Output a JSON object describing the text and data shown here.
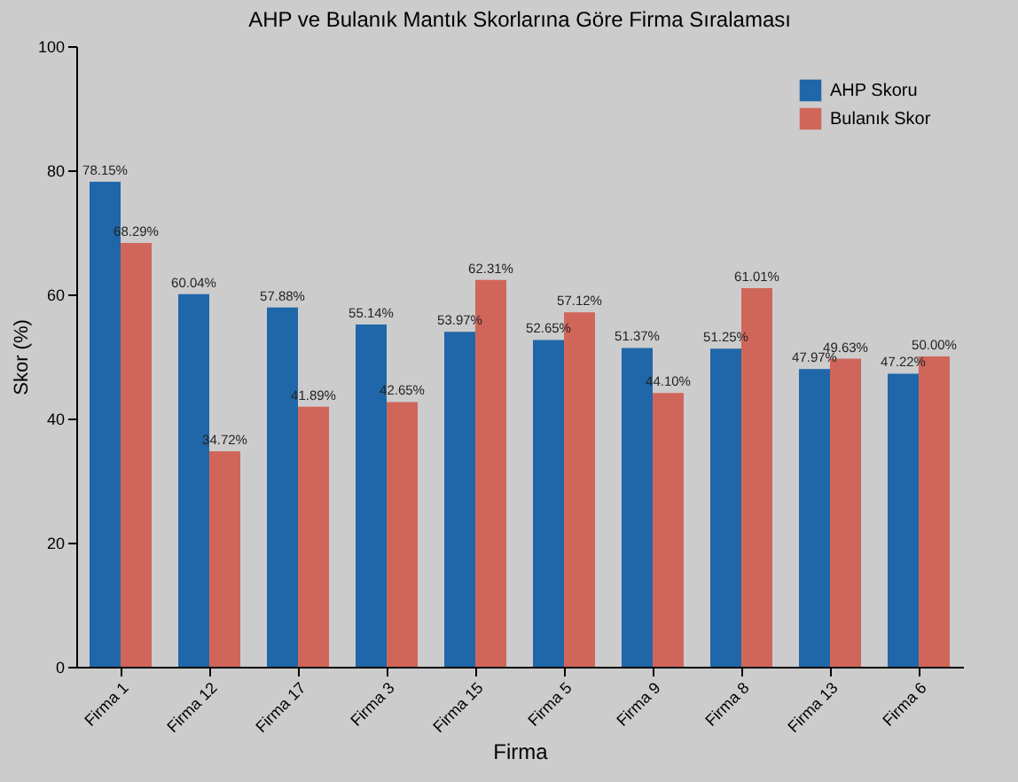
{
  "chart_data": {
    "type": "bar",
    "title": "AHP ve Bulanık Mantık Skorlarına Göre Firma Sıralaması",
    "xlabel": "Firma",
    "ylabel": "Skor (%)",
    "categories": [
      "Firma 1",
      "Firma 12",
      "Firma 17",
      "Firma 3",
      "Firma 15",
      "Firma 5",
      "Firma 9",
      "Firma 8",
      "Firma 13",
      "Firma 6"
    ],
    "series": [
      {
        "name": "AHP Skoru",
        "color": "#1f67a8",
        "values": [
          78.15,
          60.04,
          57.88,
          55.14,
          53.97,
          52.65,
          51.37,
          51.25,
          47.97,
          47.22
        ],
        "value_labels": [
          "78.15%",
          "60.04%",
          "57.88%",
          "55.14%",
          "53.97%",
          "52.65%",
          "51.37%",
          "51.25%",
          "47.97%",
          "47.22%"
        ]
      },
      {
        "name": "Bulanık Skor",
        "color": "#d0665a",
        "values": [
          68.29,
          34.72,
          41.89,
          42.65,
          62.31,
          57.12,
          44.1,
          61.01,
          49.63,
          50.0
        ],
        "value_labels": [
          "68.29%",
          "34.72%",
          "41.89%",
          "42.65%",
          "62.31%",
          "57.12%",
          "44.10%",
          "61.01%",
          "49.63%",
          "50.00%"
        ]
      }
    ],
    "ylim": [
      0,
      100
    ],
    "yticks": [
      0,
      20,
      40,
      60,
      80,
      100
    ],
    "grid": false,
    "legend": "top right"
  }
}
